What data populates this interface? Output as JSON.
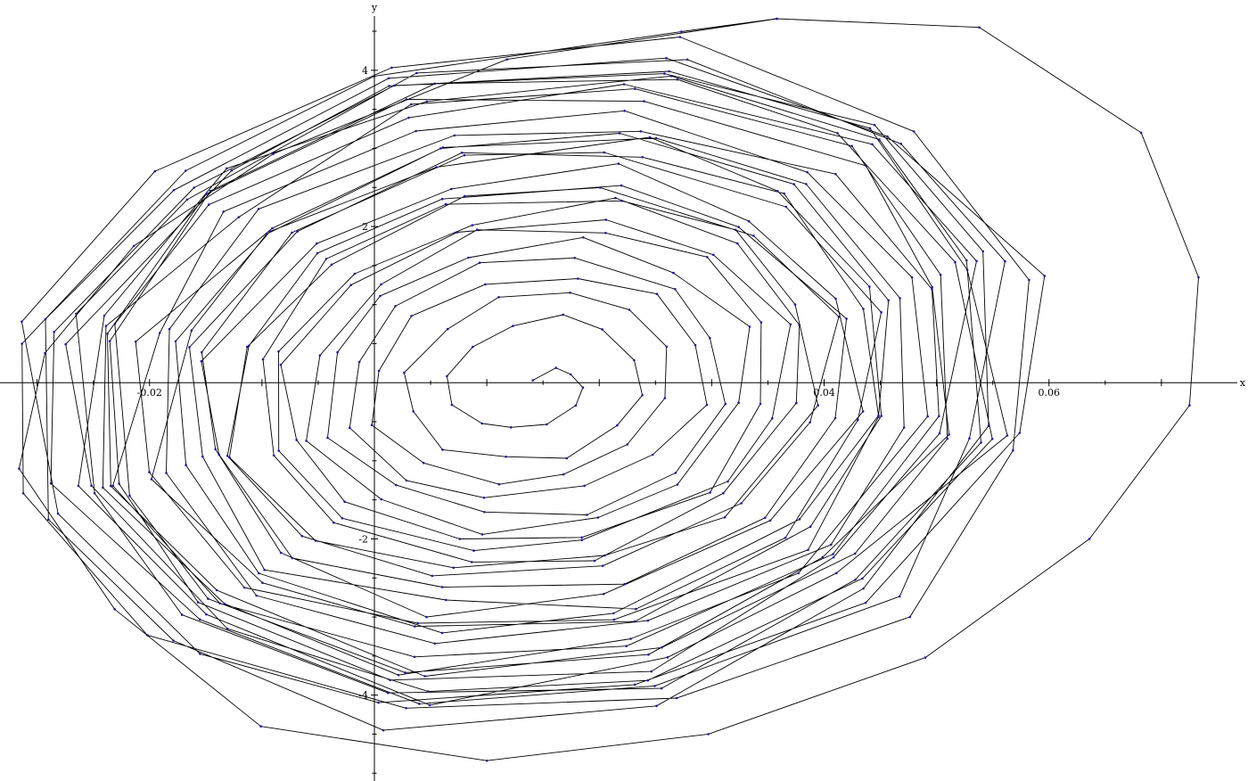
{
  "chart_data": {
    "type": "line",
    "title": "",
    "xlabel": "x",
    "ylabel": "y",
    "xlim": [
      -0.0333,
      0.0777
    ],
    "ylim": [
      -5.1,
      4.9
    ],
    "x_ticks": [
      {
        "value": -0.02,
        "label": "-0.02"
      },
      {
        "value": 0.04,
        "label": "0.04"
      },
      {
        "value": 0.06,
        "label": "0.06"
      }
    ],
    "y_ticks": [
      {
        "value": 4,
        "label": "4"
      },
      {
        "value": 2,
        "label": "2"
      },
      {
        "value": -2,
        "label": "-2"
      },
      {
        "value": -4,
        "label": "-4"
      }
    ],
    "grid": false,
    "legend": "none",
    "line_color": "#000000",
    "point_color": "#1a1a9a",
    "series": [
      {
        "spiral": {
          "turns": 30,
          "points_per_turn": 12,
          "center": [
            0.014,
            0.0
          ],
          "rx_start": 0.0004,
          "rx_end": 0.046,
          "ry_start": 0.03,
          "ry_end": 4.4,
          "tilt": 0.32
        },
        "outer_loop": [
          [
            0.0358,
            4.66
          ],
          [
            0.0538,
            4.55
          ],
          [
            0.0682,
            3.2
          ],
          [
            0.0733,
            1.35
          ],
          [
            0.0725,
            -0.29
          ],
          [
            0.0636,
            -2.0
          ],
          [
            0.049,
            -3.52
          ],
          [
            0.0297,
            -4.5
          ],
          [
            0.01,
            -4.84
          ],
          [
            -0.0101,
            -4.4
          ],
          [
            -0.0231,
            -2.9
          ],
          [
            -0.0316,
            -1.1
          ],
          [
            -0.0293,
            0.38
          ],
          [
            -0.0214,
            1.75
          ],
          [
            -0.009,
            2.93
          ],
          [
            0.0118,
            4.14
          ]
        ]
      }
    ]
  }
}
